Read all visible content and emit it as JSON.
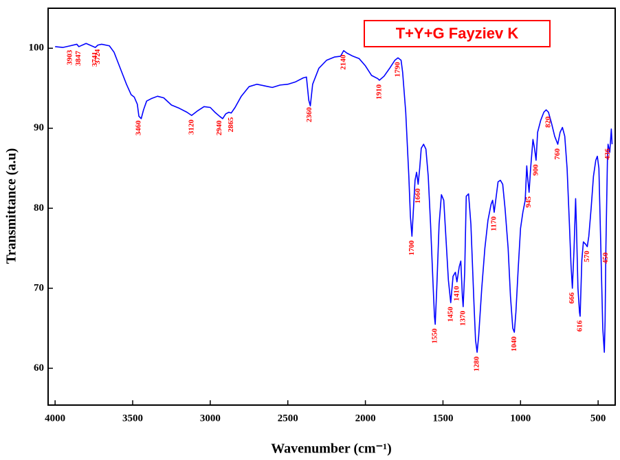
{
  "chart_data": {
    "type": "line",
    "title": "T+Y+G Fayziev K",
    "xlabel": "Wavenumber (cm⁻¹)",
    "ylabel": "Transmittance (a.u)",
    "xlim": [
      4045,
      390
    ],
    "ylim": [
      55.4,
      105
    ],
    "xticks": [
      4000,
      3500,
      3000,
      2500,
      2000,
      1500,
      1000,
      500
    ],
    "yticks": [
      60,
      70,
      80,
      90,
      100
    ],
    "grid": false,
    "color": "#0000ff",
    "peak_color": "#ff0000",
    "x": [
      4000,
      3950,
      3903,
      3860,
      3847,
      3800,
      3741,
      3724,
      3700,
      3650,
      3620,
      3600,
      3570,
      3540,
      3510,
      3490,
      3470,
      3460,
      3445,
      3430,
      3410,
      3380,
      3340,
      3300,
      3250,
      3200,
      3150,
      3120,
      3080,
      3040,
      3000,
      2970,
      2940,
      2920,
      2900,
      2880,
      2865,
      2840,
      2800,
      2750,
      2700,
      2650,
      2600,
      2550,
      2500,
      2450,
      2400,
      2380,
      2365,
      2355,
      2340,
      2300,
      2250,
      2200,
      2160,
      2140,
      2120,
      2080,
      2040,
      2000,
      1960,
      1920,
      1910,
      1880,
      1840,
      1810,
      1790,
      1770,
      1760,
      1740,
      1720,
      1710,
      1700,
      1690,
      1680,
      1670,
      1660,
      1650,
      1640,
      1625,
      1610,
      1595,
      1580,
      1565,
      1555,
      1550,
      1540,
      1525,
      1510,
      1495,
      1480,
      1465,
      1450,
      1435,
      1420,
      1410,
      1395,
      1385,
      1375,
      1370,
      1360,
      1350,
      1335,
      1320,
      1300,
      1290,
      1280,
      1270,
      1250,
      1230,
      1210,
      1190,
      1180,
      1170,
      1160,
      1145,
      1130,
      1115,
      1100,
      1080,
      1065,
      1050,
      1040,
      1030,
      1015,
      1000,
      985,
      970,
      960,
      955,
      945,
      935,
      920,
      910,
      900,
      890,
      870,
      850,
      835,
      820,
      800,
      780,
      760,
      745,
      730,
      715,
      700,
      685,
      675,
      666,
      655,
      645,
      640,
      630,
      620,
      616,
      605,
      595,
      580,
      570,
      560,
      545,
      530,
      515,
      505,
      495,
      485,
      470,
      460,
      455,
      450,
      440,
      436,
      425,
      415,
      410
    ],
    "values": [
      100.2,
      100.1,
      100.3,
      100.5,
      100.2,
      100.6,
      100.1,
      100.4,
      100.5,
      100.3,
      99.5,
      98.5,
      97,
      95.5,
      94.2,
      93.9,
      93.0,
      91.5,
      91.2,
      92.3,
      93.4,
      93.7,
      94.0,
      93.8,
      92.9,
      92.5,
      92.0,
      91.6,
      92.2,
      92.7,
      92.6,
      92.0,
      91.5,
      91.2,
      91.8,
      92.0,
      91.9,
      92.6,
      94.0,
      95.2,
      95.5,
      95.3,
      95.1,
      95.4,
      95.5,
      95.8,
      96.3,
      96.4,
      93.5,
      92.8,
      95.5,
      97.5,
      98.5,
      98.9,
      99.0,
      99.7,
      99.4,
      99.0,
      98.7,
      97.8,
      96.6,
      96.2,
      96.0,
      96.5,
      97.6,
      98.5,
      98.8,
      98.5,
      97,
      92,
      84,
      79,
      76.5,
      80,
      83.5,
      84.5,
      83.0,
      85,
      87.5,
      88.0,
      87.4,
      84,
      78,
      71,
      66.5,
      65.5,
      70,
      78,
      81.7,
      81,
      76,
      71,
      68.2,
      71.5,
      72,
      70.8,
      72.7,
      73.4,
      69,
      67.7,
      72,
      81.5,
      81.8,
      78,
      68,
      63.5,
      62,
      64,
      70,
      75,
      78.5,
      80.5,
      81,
      79.5,
      81,
      83.3,
      83.5,
      83.0,
      80,
      75,
      69,
      65,
      64.5,
      67,
      72.5,
      77.5,
      79.5,
      81,
      85.3,
      84,
      82,
      85,
      88.6,
      87.5,
      86,
      89.5,
      91,
      92,
      92.3,
      92,
      90.6,
      89,
      88,
      89.5,
      90.1,
      89,
      85,
      78,
      73,
      70,
      75,
      81.2,
      78,
      70,
      67,
      66.5,
      73.5,
      75.8,
      75.5,
      75.2,
      76.5,
      80,
      84,
      86,
      86.5,
      85,
      77,
      65,
      62,
      66,
      75,
      86,
      88.0,
      87,
      89.9,
      88
    ],
    "peaks": [
      3903,
      3847,
      3741,
      3724,
      3460,
      3120,
      2940,
      2865,
      2360,
      2140,
      1910,
      1790,
      1700,
      1660,
      1550,
      1450,
      1410,
      1370,
      1280,
      1170,
      1040,
      945,
      900,
      820,
      760,
      666,
      616,
      570,
      450,
      436
    ]
  }
}
